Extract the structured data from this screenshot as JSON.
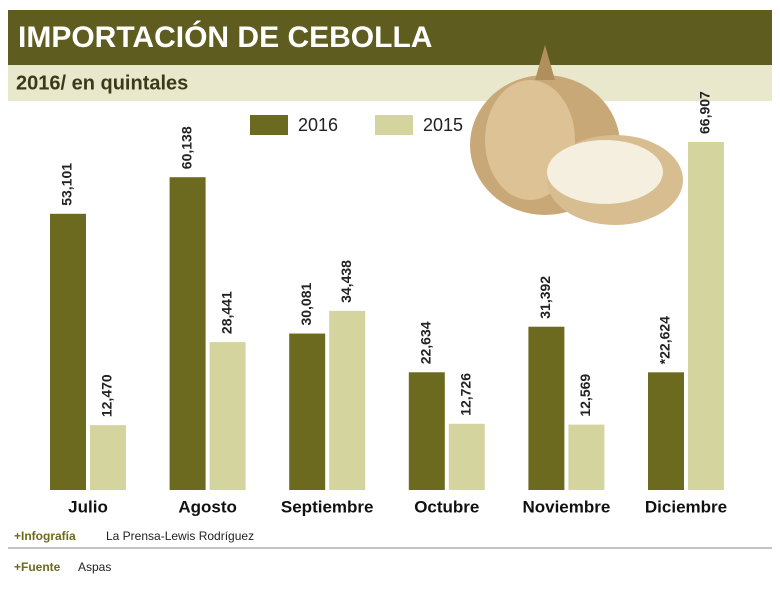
{
  "chart_data": {
    "type": "bar",
    "title": "IMPORTACIÓN DE CEBOLLA",
    "subtitle": "2016/ en quintales",
    "categories": [
      "Julio",
      "Agosto",
      "Septiembre",
      "Octubre",
      "Noviembre",
      "Diciembre"
    ],
    "series": [
      {
        "name": "2016",
        "color": "#6b6a1e",
        "values": [
          53101,
          60138,
          30081,
          22634,
          31392,
          22624
        ],
        "value_labels": [
          "53,101",
          "60,138",
          "30,081",
          "22,634",
          "31,392",
          "*22,624"
        ]
      },
      {
        "name": "2015",
        "color": "#d4d59e",
        "values": [
          12470,
          28441,
          34438,
          12726,
          12569,
          66907
        ],
        "value_labels": [
          "12,470",
          "28,441",
          "34,438",
          "12,726",
          "12,569",
          "66,907"
        ]
      }
    ],
    "footer": {
      "credit_label": "+Infografía",
      "credit": "La Prensa-Lewis Rodríguez",
      "source_label": "+Fuente",
      "source": "Aspas"
    }
  }
}
